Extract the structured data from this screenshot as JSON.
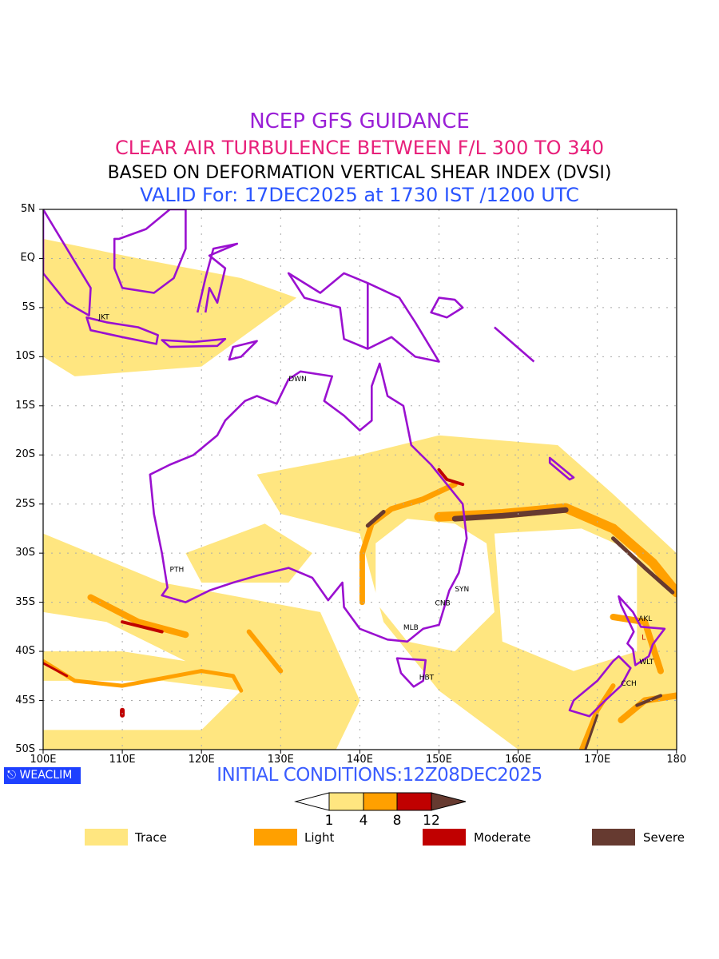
{
  "titles": {
    "line1": "NCEP GFS GUIDANCE",
    "line2": "CLEAR AIR TURBULENCE BETWEEN F/L 300 TO 340",
    "line3": "BASED ON DEFORMATION VERTICAL SHEAR INDEX (DVSI)",
    "line4": "VALID For: 17DEC2025 at 1730 IST /1200 UTC"
  },
  "axes": {
    "lat_labels": [
      "5N",
      "EQ",
      "5S",
      "10S",
      "15S",
      "20S",
      "25S",
      "30S",
      "35S",
      "40S",
      "45S",
      "50S"
    ],
    "lon_labels": [
      "100E",
      "110E",
      "120E",
      "130E",
      "140E",
      "150E",
      "160E",
      "170E",
      "180"
    ]
  },
  "cities": [
    "JKT",
    "DWN",
    "PTH",
    "SYN",
    "CNB",
    "MLB",
    "HBT",
    "AKL",
    "WLT",
    "CCH"
  ],
  "low_marker": "L",
  "logo": "WEACLIM",
  "initial_conditions": "INITIAL CONDITIONS:12Z08DEC2025",
  "colorbar": {
    "ticks": [
      "1",
      "4",
      "8",
      "12"
    ],
    "colors": [
      "#ffffff",
      "#ffe680",
      "#ffa000",
      "#c00000",
      "#663a30"
    ]
  },
  "legend": [
    {
      "label": "Trace",
      "color": "#ffe680"
    },
    {
      "label": "Light",
      "color": "#ffa000"
    },
    {
      "label": "Moderate",
      "color": "#c00000"
    },
    {
      "label": "Severe",
      "color": "#663a30"
    }
  ],
  "colors": {
    "coast": "#9a10d0",
    "grid": "#aaaaaa"
  }
}
